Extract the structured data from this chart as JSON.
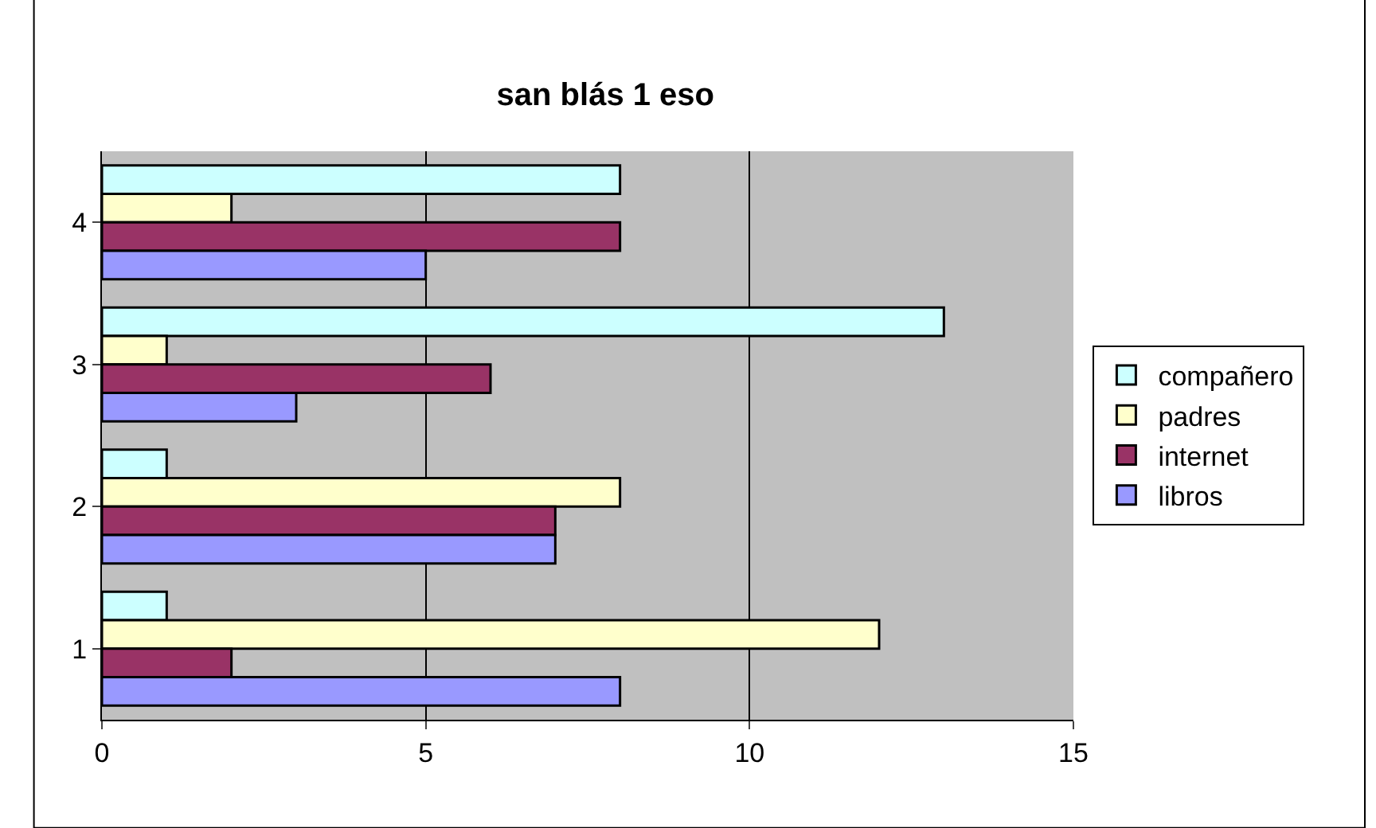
{
  "chart_data": {
    "type": "bar",
    "title": "san blás 1 eso",
    "orientation": "horizontal",
    "categories": [
      "4",
      "3",
      "2",
      "1"
    ],
    "series": [
      {
        "name": "compañero",
        "color": "#ccffff",
        "values": [
          8,
          13,
          1,
          1
        ]
      },
      {
        "name": "padres",
        "color": "#ffffcc",
        "values": [
          2,
          1,
          8,
          12
        ]
      },
      {
        "name": "internet",
        "color": "#993366",
        "values": [
          8,
          6,
          7,
          2
        ]
      },
      {
        "name": "libros",
        "color": "#9999ff",
        "values": [
          5,
          3,
          7,
          8
        ]
      }
    ],
    "xlim": [
      0,
      15
    ],
    "xticks": [
      0,
      5,
      10,
      15
    ],
    "grid": "x",
    "legend": "right"
  }
}
